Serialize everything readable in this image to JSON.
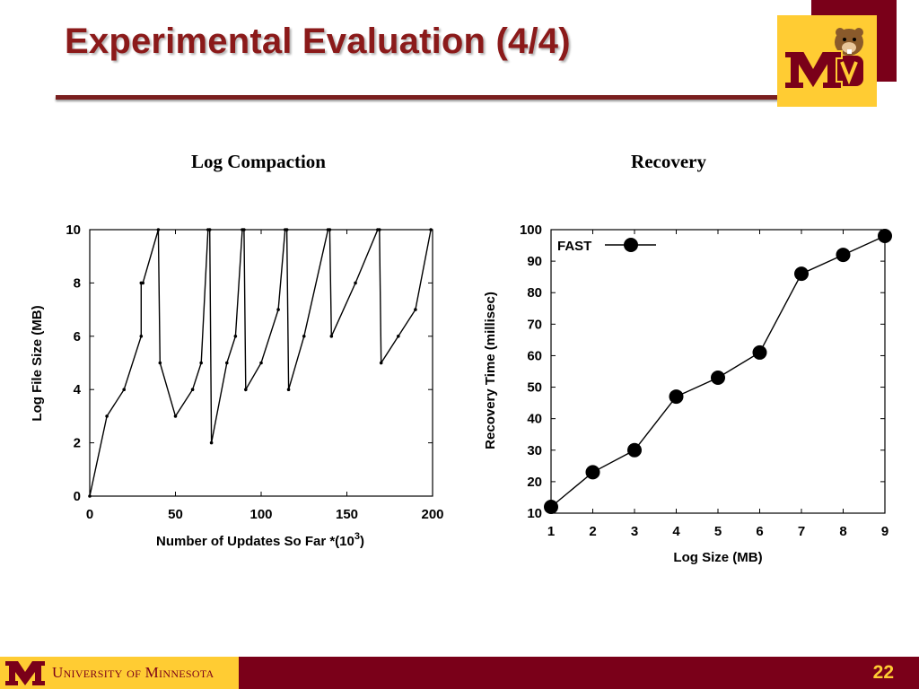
{
  "slide": {
    "title": "Experimental Evaluation (4/4)",
    "page_number": "22",
    "footer_text": "University of Minnesota",
    "colors": {
      "maroon": "#7a0019",
      "gold": "#ffcc33",
      "title": "#8b1a1a"
    },
    "logo_icon": "goldy-gopher-m-logo"
  },
  "chart_data": [
    {
      "type": "line",
      "title": "Log Compaction",
      "xlabel": "Number of Updates So Far *(10",
      "xlabel_sup": "3",
      "xlabel_close": ")",
      "ylabel": "Log File Size (MB)",
      "xlim": [
        0,
        200
      ],
      "ylim": [
        0,
        10
      ],
      "xticks": [
        "0",
        "50",
        "100",
        "150",
        "200"
      ],
      "yticks": [
        "0",
        "2",
        "4",
        "6",
        "8",
        "10"
      ],
      "grid": false,
      "series": [
        {
          "x": [
            0,
            10,
            20,
            30,
            30,
            31,
            40,
            41,
            50,
            60,
            65,
            69,
            70,
            71,
            80,
            85,
            89,
            90,
            91,
            100,
            110,
            114,
            115,
            116,
            125,
            139,
            140,
            141,
            155,
            168,
            169,
            170,
            180,
            190,
            199
          ],
          "y": [
            0,
            3,
            4,
            6,
            8,
            8,
            10,
            5,
            3,
            4,
            5,
            10,
            10,
            2,
            5,
            6,
            10,
            10,
            4,
            5,
            7,
            10,
            10,
            4,
            6,
            10,
            10,
            6,
            8,
            10,
            10,
            5,
            6,
            7,
            10
          ]
        }
      ]
    },
    {
      "type": "line",
      "title": "Recovery",
      "xlabel": "Log Size (MB)",
      "ylabel": "Recovery Time (millisec)",
      "xlim": [
        1,
        9
      ],
      "ylim": [
        10,
        100
      ],
      "xticks": [
        "1",
        "2",
        "3",
        "4",
        "5",
        "6",
        "7",
        "8",
        "9"
      ],
      "yticks": [
        "10",
        "20",
        "30",
        "40",
        "50",
        "60",
        "70",
        "80",
        "90",
        "100"
      ],
      "grid": false,
      "legend": "top-left",
      "series": [
        {
          "name": "FAST",
          "x": [
            1,
            2,
            3,
            4,
            5,
            6,
            7,
            8,
            9
          ],
          "y": [
            12,
            23,
            30,
            47,
            53,
            61,
            86,
            92,
            98
          ]
        }
      ]
    }
  ]
}
